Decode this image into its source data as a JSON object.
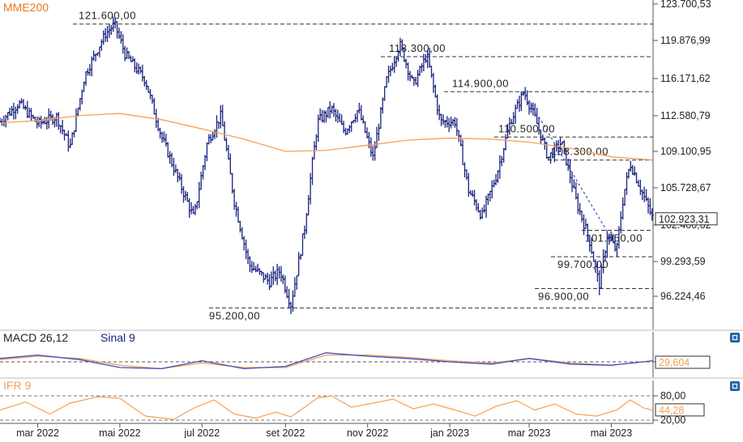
{
  "chart_data": [
    {
      "type": "ohlc",
      "indicator_label": "MME200",
      "colors": {
        "price": "#1a237e",
        "moving_average": "#f5a05a",
        "trend_line": "#3b4cc0",
        "indicator_label": "#e8781e"
      },
      "y_ticks": [
        "123.700,53",
        "119.876,99",
        "116.171,62",
        "112.580,79",
        "109.100,95",
        "105.728,67",
        "102.400,62",
        "99.293,59",
        "96.224,46"
      ],
      "y_tick_values": [
        123700.53,
        119876.99,
        116171.62,
        112580.79,
        109100.95,
        105728.67,
        102400.62,
        99293.59,
        96224.46
      ],
      "last_price_label": "102.923,31",
      "last_price": 102923.31,
      "x_ticks": [
        "mar 2022",
        "mai 2022",
        "jul 2022",
        "set 2022",
        "nov 2022",
        "jan 2023",
        "mar 2023",
        "mai 2023"
      ],
      "levels": [
        {
          "label": "121.600,00",
          "value": 121600
        },
        {
          "label": "118.300,00",
          "value": 118300
        },
        {
          "label": "114.900,00",
          "value": 114900
        },
        {
          "label": "110.500,00",
          "value": 110500
        },
        {
          "label": "108.300,00",
          "value": 108300
        },
        {
          "label": "101.950,00",
          "value": 101950
        },
        {
          "label": "99.700,00",
          "value": 99700
        },
        {
          "label": "96.900,00",
          "value": 96900
        },
        {
          "label": "95.200,00",
          "value": 95200
        }
      ],
      "close_path": [
        [
          "2022-02-01",
          112000
        ],
        [
          "2022-02-15",
          113800
        ],
        [
          "2022-03-01",
          111800
        ],
        [
          "2022-03-15",
          112500
        ],
        [
          "2022-03-25",
          109500
        ],
        [
          "2022-04-05",
          116500
        ],
        [
          "2022-04-20",
          120500
        ],
        [
          "2022-04-27",
          121600
        ],
        [
          "2022-05-05",
          118500
        ],
        [
          "2022-05-20",
          116000
        ],
        [
          "2022-06-01",
          110500
        ],
        [
          "2022-06-15",
          106000
        ],
        [
          "2022-06-25",
          103000
        ],
        [
          "2022-07-05",
          110000
        ],
        [
          "2022-07-15",
          112600
        ],
        [
          "2022-07-25",
          104500
        ],
        [
          "2022-08-05",
          99000
        ],
        [
          "2022-08-20",
          97500
        ],
        [
          "2022-08-28",
          98500
        ],
        [
          "2022-09-05",
          95500
        ],
        [
          "2022-09-15",
          102000
        ],
        [
          "2022-09-25",
          112000
        ],
        [
          "2022-10-05",
          113300
        ],
        [
          "2022-10-15",
          111000
        ],
        [
          "2022-10-25",
          113200
        ],
        [
          "2022-11-05",
          108500
        ],
        [
          "2022-11-15",
          116000
        ],
        [
          "2022-11-25",
          119500
        ],
        [
          "2022-12-05",
          115500
        ],
        [
          "2022-12-15",
          118500
        ],
        [
          "2022-12-25",
          112000
        ],
        [
          "2023-01-05",
          112000
        ],
        [
          "2023-01-15",
          105500
        ],
        [
          "2023-01-25",
          103200
        ],
        [
          "2023-02-05",
          107000
        ],
        [
          "2023-02-15",
          112000
        ],
        [
          "2023-02-25",
          114900
        ],
        [
          "2023-03-05",
          112500
        ],
        [
          "2023-03-15",
          108500
        ],
        [
          "2023-03-25",
          110000
        ],
        [
          "2023-04-05",
          104500
        ],
        [
          "2023-04-15",
          101000
        ],
        [
          "2023-04-22",
          97200
        ],
        [
          "2023-04-28",
          101500
        ],
        [
          "2023-05-05",
          100200
        ],
        [
          "2023-05-10",
          105000
        ],
        [
          "2023-05-15",
          108000
        ],
        [
          "2023-05-25",
          105000
        ],
        [
          "2023-06-01",
          102900
        ]
      ],
      "moving_average_path": [
        [
          "2022-02-01",
          111900
        ],
        [
          "2022-03-01",
          112100
        ],
        [
          "2022-04-01",
          112600
        ],
        [
          "2022-05-01",
          112800
        ],
        [
          "2022-06-01",
          112200
        ],
        [
          "2022-07-01",
          111300
        ],
        [
          "2022-08-01",
          110300
        ],
        [
          "2022-09-01",
          109100
        ],
        [
          "2022-10-01",
          109200
        ],
        [
          "2022-11-01",
          109700
        ],
        [
          "2022-12-01",
          110200
        ],
        [
          "2023-01-01",
          110400
        ],
        [
          "2023-02-01",
          110300
        ],
        [
          "2023-03-01",
          110000
        ],
        [
          "2023-04-01",
          109400
        ],
        [
          "2023-05-01",
          108600
        ],
        [
          "2023-06-01",
          108300
        ]
      ],
      "trend_line": {
        "from": [
          "2023-02-25",
          114900
        ],
        "to": [
          "2023-05-05",
          100500
        ]
      }
    },
    {
      "type": "line",
      "title": "MACD 26,12",
      "signal_label": "Sinal 9",
      "last_value_label": "29,604",
      "colors": {
        "macd": "#3b4cc0",
        "signal": "#f5a05a",
        "signal_label": "#1a237e"
      },
      "macd": [
        [
          "2022-02-01",
          0.3
        ],
        [
          "2022-03-01",
          0.6
        ],
        [
          "2022-04-01",
          0.2
        ],
        [
          "2022-05-01",
          -0.5
        ],
        [
          "2022-06-01",
          -0.6
        ],
        [
          "2022-07-01",
          0.1
        ],
        [
          "2022-08-01",
          -0.6
        ],
        [
          "2022-09-01",
          -0.4
        ],
        [
          "2022-10-01",
          0.8
        ],
        [
          "2022-11-01",
          0.5
        ],
        [
          "2022-12-01",
          0.3
        ],
        [
          "2023-01-01",
          0.0
        ],
        [
          "2023-02-01",
          -0.2
        ],
        [
          "2023-03-01",
          0.3
        ],
        [
          "2023-04-01",
          -0.2
        ],
        [
          "2023-05-01",
          -0.3
        ],
        [
          "2023-06-01",
          0.1
        ]
      ],
      "signal": [
        [
          "2022-02-01",
          0.2
        ],
        [
          "2022-03-01",
          0.5
        ],
        [
          "2022-04-01",
          0.3
        ],
        [
          "2022-05-01",
          -0.3
        ],
        [
          "2022-06-01",
          -0.6
        ],
        [
          "2022-07-01",
          -0.1
        ],
        [
          "2022-08-01",
          -0.5
        ],
        [
          "2022-09-01",
          -0.5
        ],
        [
          "2022-10-01",
          0.6
        ],
        [
          "2022-11-01",
          0.6
        ],
        [
          "2022-12-01",
          0.4
        ],
        [
          "2023-01-01",
          0.1
        ],
        [
          "2023-02-01",
          -0.1
        ],
        [
          "2023-03-01",
          0.3
        ],
        [
          "2023-04-01",
          -0.1
        ],
        [
          "2023-05-01",
          -0.3
        ],
        [
          "2023-06-01",
          0.1
        ]
      ]
    },
    {
      "type": "line",
      "title": "IFR 9",
      "y_ticks": [
        "80,00",
        "20,00"
      ],
      "y_tick_values": [
        80,
        20
      ],
      "last_value_label": "44,28",
      "last_value": 44.28,
      "color": "#f5a05a",
      "values": [
        [
          "2022-02-01",
          45
        ],
        [
          "2022-02-20",
          65
        ],
        [
          "2022-03-10",
          35
        ],
        [
          "2022-03-25",
          62
        ],
        [
          "2022-04-15",
          78
        ],
        [
          "2022-05-01",
          74
        ],
        [
          "2022-05-20",
          30
        ],
        [
          "2022-06-10",
          22
        ],
        [
          "2022-06-25",
          50
        ],
        [
          "2022-07-10",
          70
        ],
        [
          "2022-07-25",
          35
        ],
        [
          "2022-08-10",
          25
        ],
        [
          "2022-08-25",
          40
        ],
        [
          "2022-09-05",
          28
        ],
        [
          "2022-09-25",
          75
        ],
        [
          "2022-10-05",
          80
        ],
        [
          "2022-10-20",
          52
        ],
        [
          "2022-11-05",
          62
        ],
        [
          "2022-11-20",
          72
        ],
        [
          "2022-12-05",
          48
        ],
        [
          "2022-12-20",
          60
        ],
        [
          "2023-01-05",
          45
        ],
        [
          "2023-01-20",
          30
        ],
        [
          "2023-02-05",
          55
        ],
        [
          "2023-02-20",
          68
        ],
        [
          "2023-03-05",
          45
        ],
        [
          "2023-03-20",
          60
        ],
        [
          "2023-04-05",
          35
        ],
        [
          "2023-04-20",
          30
        ],
        [
          "2023-05-05",
          45
        ],
        [
          "2023-05-15",
          70
        ],
        [
          "2023-05-25",
          50
        ],
        [
          "2023-06-01",
          44.28
        ]
      ]
    }
  ]
}
